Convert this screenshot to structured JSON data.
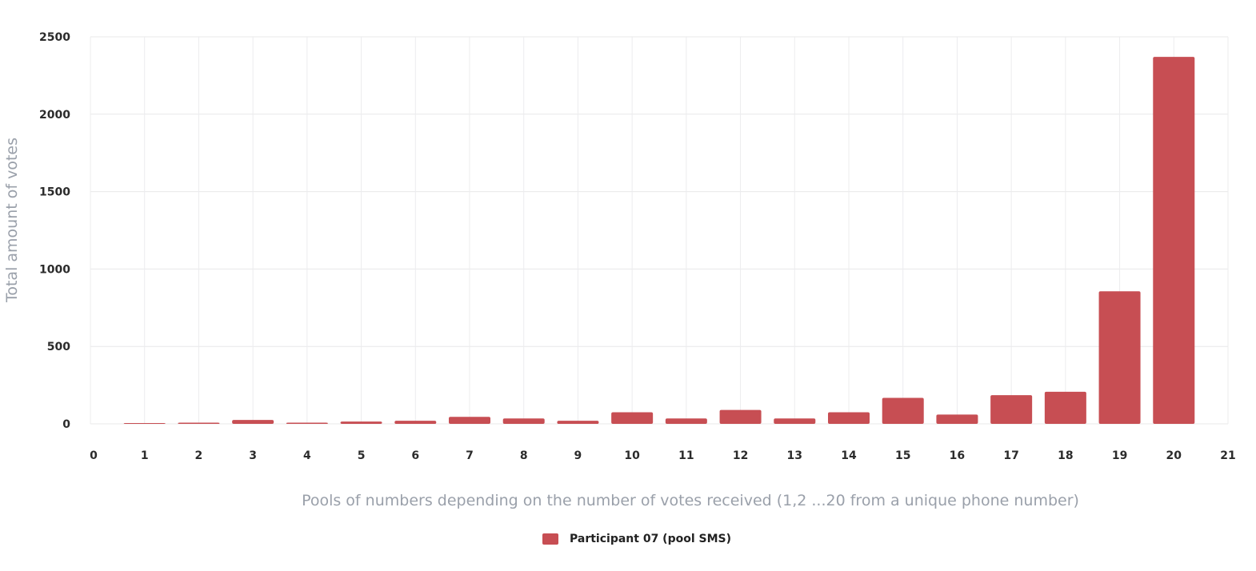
{
  "chart_data": {
    "type": "bar",
    "xlabel": "Pools of numbers depending on the number of votes received (1,2 ...20 from a unique  phone number)",
    "ylabel": "Total amount of votes",
    "x_ticks": [
      "0",
      "1",
      "2",
      "3",
      "4",
      "5",
      "6",
      "7",
      "8",
      "9",
      "10",
      "11",
      "12",
      "13",
      "14",
      "15",
      "16",
      "17",
      "18",
      "19",
      "20",
      "21"
    ],
    "y_ticks": [
      "0",
      "500",
      "1000",
      "1500",
      "2000",
      "2500"
    ],
    "xlim": [
      0,
      21
    ],
    "ylim": [
      0,
      2500
    ],
    "grid": true,
    "legend_position": "bottom",
    "categories": [
      1,
      2,
      3,
      4,
      5,
      6,
      7,
      8,
      9,
      10,
      11,
      12,
      13,
      14,
      15,
      16,
      17,
      18,
      19,
      20
    ],
    "series": [
      {
        "name": "Participant 07 (pool SMS)",
        "color": "#c74e53",
        "values": [
          5,
          8,
          25,
          8,
          15,
          20,
          45,
          35,
          20,
          75,
          35,
          90,
          35,
          75,
          168,
          60,
          185,
          207,
          856,
          2370
        ]
      }
    ]
  }
}
